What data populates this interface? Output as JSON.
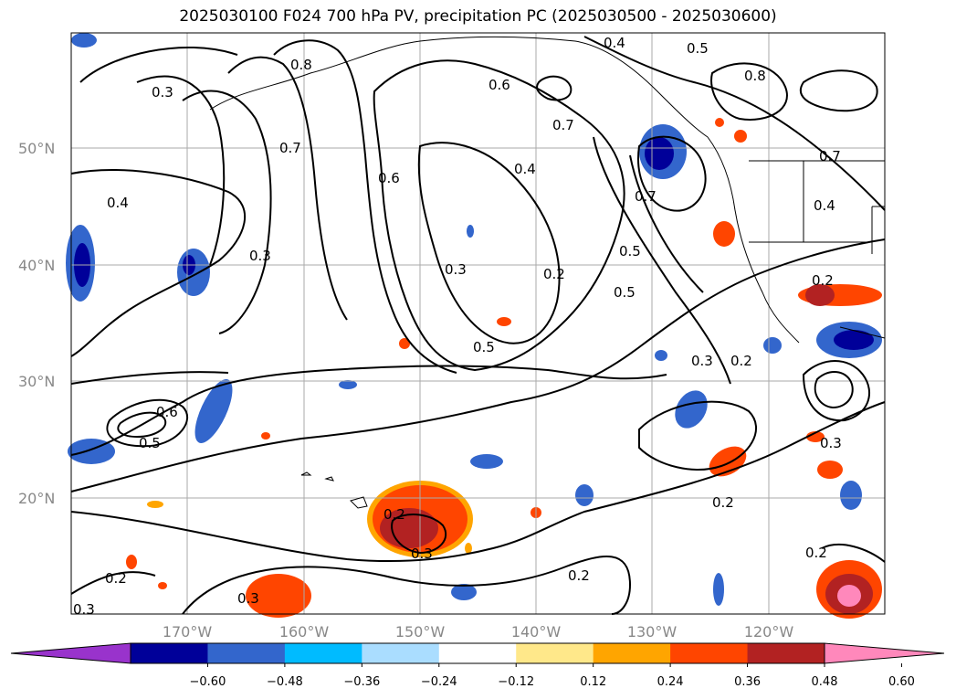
{
  "title": "2025030100 F024 700 hPa PV, precipitation PC (2025030500 - 2025030600)",
  "lat_labels": [
    "50°N",
    "40°N",
    "30°N",
    "20°N"
  ],
  "lon_labels": [
    "170°W",
    "160°W",
    "150°W",
    "140°W",
    "130°W",
    "120°W"
  ],
  "contour_labels": [
    "0.4",
    "0.5",
    "0.3",
    "0.8",
    "0.7",
    "0.6",
    "0.7",
    "0.4",
    "0.6",
    "0.3",
    "0.3",
    "0.2",
    "0.5",
    "0.7",
    "0.5",
    "0.5",
    "0.8",
    "0.7",
    "0.4",
    "0.2",
    "0.3",
    "0.2",
    "0.4",
    "0.6",
    "0.5",
    "0.2",
    "0.3",
    "0.3",
    "0.2",
    "0.2",
    "0.3",
    "0.2",
    "0.2",
    "0.3"
  ],
  "colorbar": {
    "ticks": [
      "−0.60",
      "−0.48",
      "−0.36",
      "−0.24",
      "−0.12",
      "0.12",
      "0.24",
      "0.36",
      "0.48",
      "0.60"
    ],
    "colors": [
      "#9933cc",
      "#000099",
      "#3366cc",
      "#00bbff",
      "#aaddff",
      "#ffffff",
      "#ffe88a",
      "#ffa500",
      "#ff4500",
      "#b22222",
      "#ff88bb"
    ]
  },
  "colors": {
    "grid": "#aaaaaa",
    "contour": "#000000",
    "axis_label": "#888888"
  }
}
